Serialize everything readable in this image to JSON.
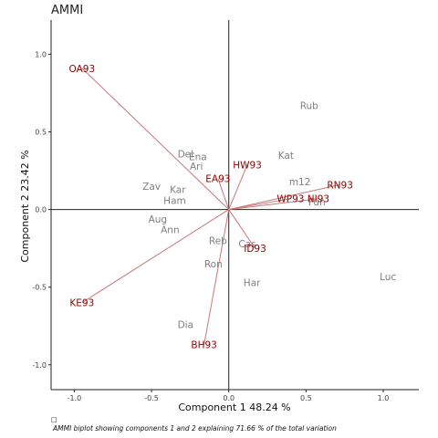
{
  "chart_data": {
    "type": "scatter",
    "title": "AMMI",
    "xlabel": "Component 1 48.24 %",
    "ylabel": "Component 2 23.42 %",
    "xlim": [
      -1.15,
      1.23
    ],
    "ylim": [
      -1.16,
      1.22
    ],
    "x_ticks": [
      {
        "value": -1.0,
        "label": "-1.0"
      },
      {
        "value": -0.5,
        "label": "-0.5"
      },
      {
        "value": 0.0,
        "label": "0.0"
      },
      {
        "value": 0.5,
        "label": "0.5"
      },
      {
        "value": 1.0,
        "label": "1.0"
      }
    ],
    "y_ticks": [
      {
        "value": 1.0,
        "label": "1.0"
      },
      {
        "value": 0.5,
        "label": "0.5"
      },
      {
        "value": 0.0,
        "label": "0.0"
      },
      {
        "value": -0.5,
        "label": "-0.5"
      },
      {
        "value": -1.0,
        "label": "-1.0"
      }
    ],
    "grid": false,
    "reference_lines": {
      "x": 0,
      "y": 0
    },
    "genotypes": [
      {
        "name": "Rub",
        "x": 0.52,
        "y": 0.67
      },
      {
        "name": "Del",
        "x": -0.28,
        "y": 0.36
      },
      {
        "name": "Ena",
        "x": -0.2,
        "y": 0.34
      },
      {
        "name": "Ari",
        "x": -0.21,
        "y": 0.28
      },
      {
        "name": "Kat",
        "x": 0.37,
        "y": 0.35
      },
      {
        "name": "m12",
        "x": 0.46,
        "y": 0.18
      },
      {
        "name": "Zav",
        "x": -0.5,
        "y": 0.15
      },
      {
        "name": "Kar",
        "x": -0.33,
        "y": 0.13
      },
      {
        "name": "Ham",
        "x": -0.35,
        "y": 0.06
      },
      {
        "name": "Fun",
        "x": 0.57,
        "y": 0.05
      },
      {
        "name": "Aug",
        "x": -0.46,
        "y": -0.06
      },
      {
        "name": "Ann",
        "x": -0.38,
        "y": -0.13
      },
      {
        "name": "Reb",
        "x": -0.07,
        "y": -0.2
      },
      {
        "name": "Cas",
        "x": 0.12,
        "y": -0.22
      },
      {
        "name": "Ron",
        "x": -0.1,
        "y": -0.35
      },
      {
        "name": "Har",
        "x": 0.15,
        "y": -0.47
      },
      {
        "name": "Luc",
        "x": 1.03,
        "y": -0.43
      },
      {
        "name": "Dia",
        "x": -0.28,
        "y": -0.74
      }
    ],
    "environments": [
      {
        "name": "OA93",
        "x": -0.95,
        "y": 0.91
      },
      {
        "name": "HW93",
        "x": 0.12,
        "y": 0.29
      },
      {
        "name": "EA93",
        "x": -0.07,
        "y": 0.2
      },
      {
        "name": "RN93",
        "x": 0.72,
        "y": 0.16
      },
      {
        "name": "WP93",
        "x": 0.4,
        "y": 0.07
      },
      {
        "name": "NI93",
        "x": 0.58,
        "y": 0.07
      },
      {
        "name": "ID93",
        "x": 0.17,
        "y": -0.25
      },
      {
        "name": "KE93",
        "x": -0.95,
        "y": -0.6
      },
      {
        "name": "BH93",
        "x": -0.16,
        "y": -0.87
      }
    ],
    "colors": {
      "genotype_text": "#7f7f7f",
      "environment_text": "#8b0000",
      "vector": "#c87878",
      "axes": "#222222"
    }
  },
  "caption": {
    "mark": "□",
    "text": "AMMI biplot showing components 1 and 2 explaining  71.66 % of the total variation"
  }
}
